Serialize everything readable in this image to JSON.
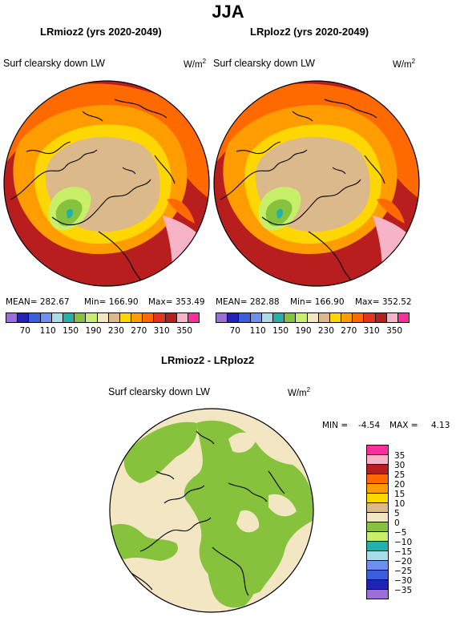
{
  "title": "JJA",
  "panels": [
    {
      "title": "LRmioz2 (yrs 2020-2049)",
      "variable": "Surf clearsky down LW",
      "unit_base": "W/m",
      "unit_exp": "2",
      "stats": {
        "mean": "MEAN= 282.67",
        "min": "Min= 166.90",
        "max": "Max= 353.49"
      }
    },
    {
      "title": "LRploz2 (yrs 2020-2049)",
      "variable": "Surf clearsky down LW",
      "unit_base": "W/m",
      "unit_exp": "2",
      "stats": {
        "mean": "MEAN= 282.88",
        "min": "Min= 166.90",
        "max": "Max= 352.52"
      }
    }
  ],
  "colorbar_top": {
    "colors": [
      "#9b6fd8",
      "#2222b8",
      "#3b5fdc",
      "#6f8ff0",
      "#a8dce8",
      "#22b2a8",
      "#86c23c",
      "#c8ef6a",
      "#f3e6c3",
      "#dcb98a",
      "#ffd700",
      "#ff9d00",
      "#ff6a00",
      "#e6341c",
      "#b81e1e",
      "#f7b4c6",
      "#ff2d9b"
    ],
    "labels": [
      "70",
      "110",
      "150",
      "190",
      "230",
      "270",
      "310",
      "350"
    ]
  },
  "diff_panel": {
    "title": "LRmioz2 - LRploz2",
    "variable": "Surf clearsky down LW",
    "unit_base": "W/m",
    "unit_exp": "2",
    "min_text": "MIN =",
    "min_value": "-4.54",
    "max_text": "MAX =",
    "max_value": "4.13"
  },
  "colorbar_diff": {
    "colors": [
      "#ff2d9b",
      "#f7b4c6",
      "#b81e1e",
      "#ff6a00",
      "#ff9d00",
      "#ffd700",
      "#dcb98a",
      "#f3e6c3",
      "#86c23c",
      "#c8ef6a",
      "#22b2a8",
      "#a8dce8",
      "#6f8ff0",
      "#3b5fdc",
      "#2222b8",
      "#9b6fd8"
    ],
    "labels": [
      "35",
      "30",
      "25",
      "20",
      "15",
      "10",
      "5",
      "0",
      "−5",
      "−10",
      "−15",
      "−20",
      "−25",
      "−30",
      "−35"
    ]
  }
}
